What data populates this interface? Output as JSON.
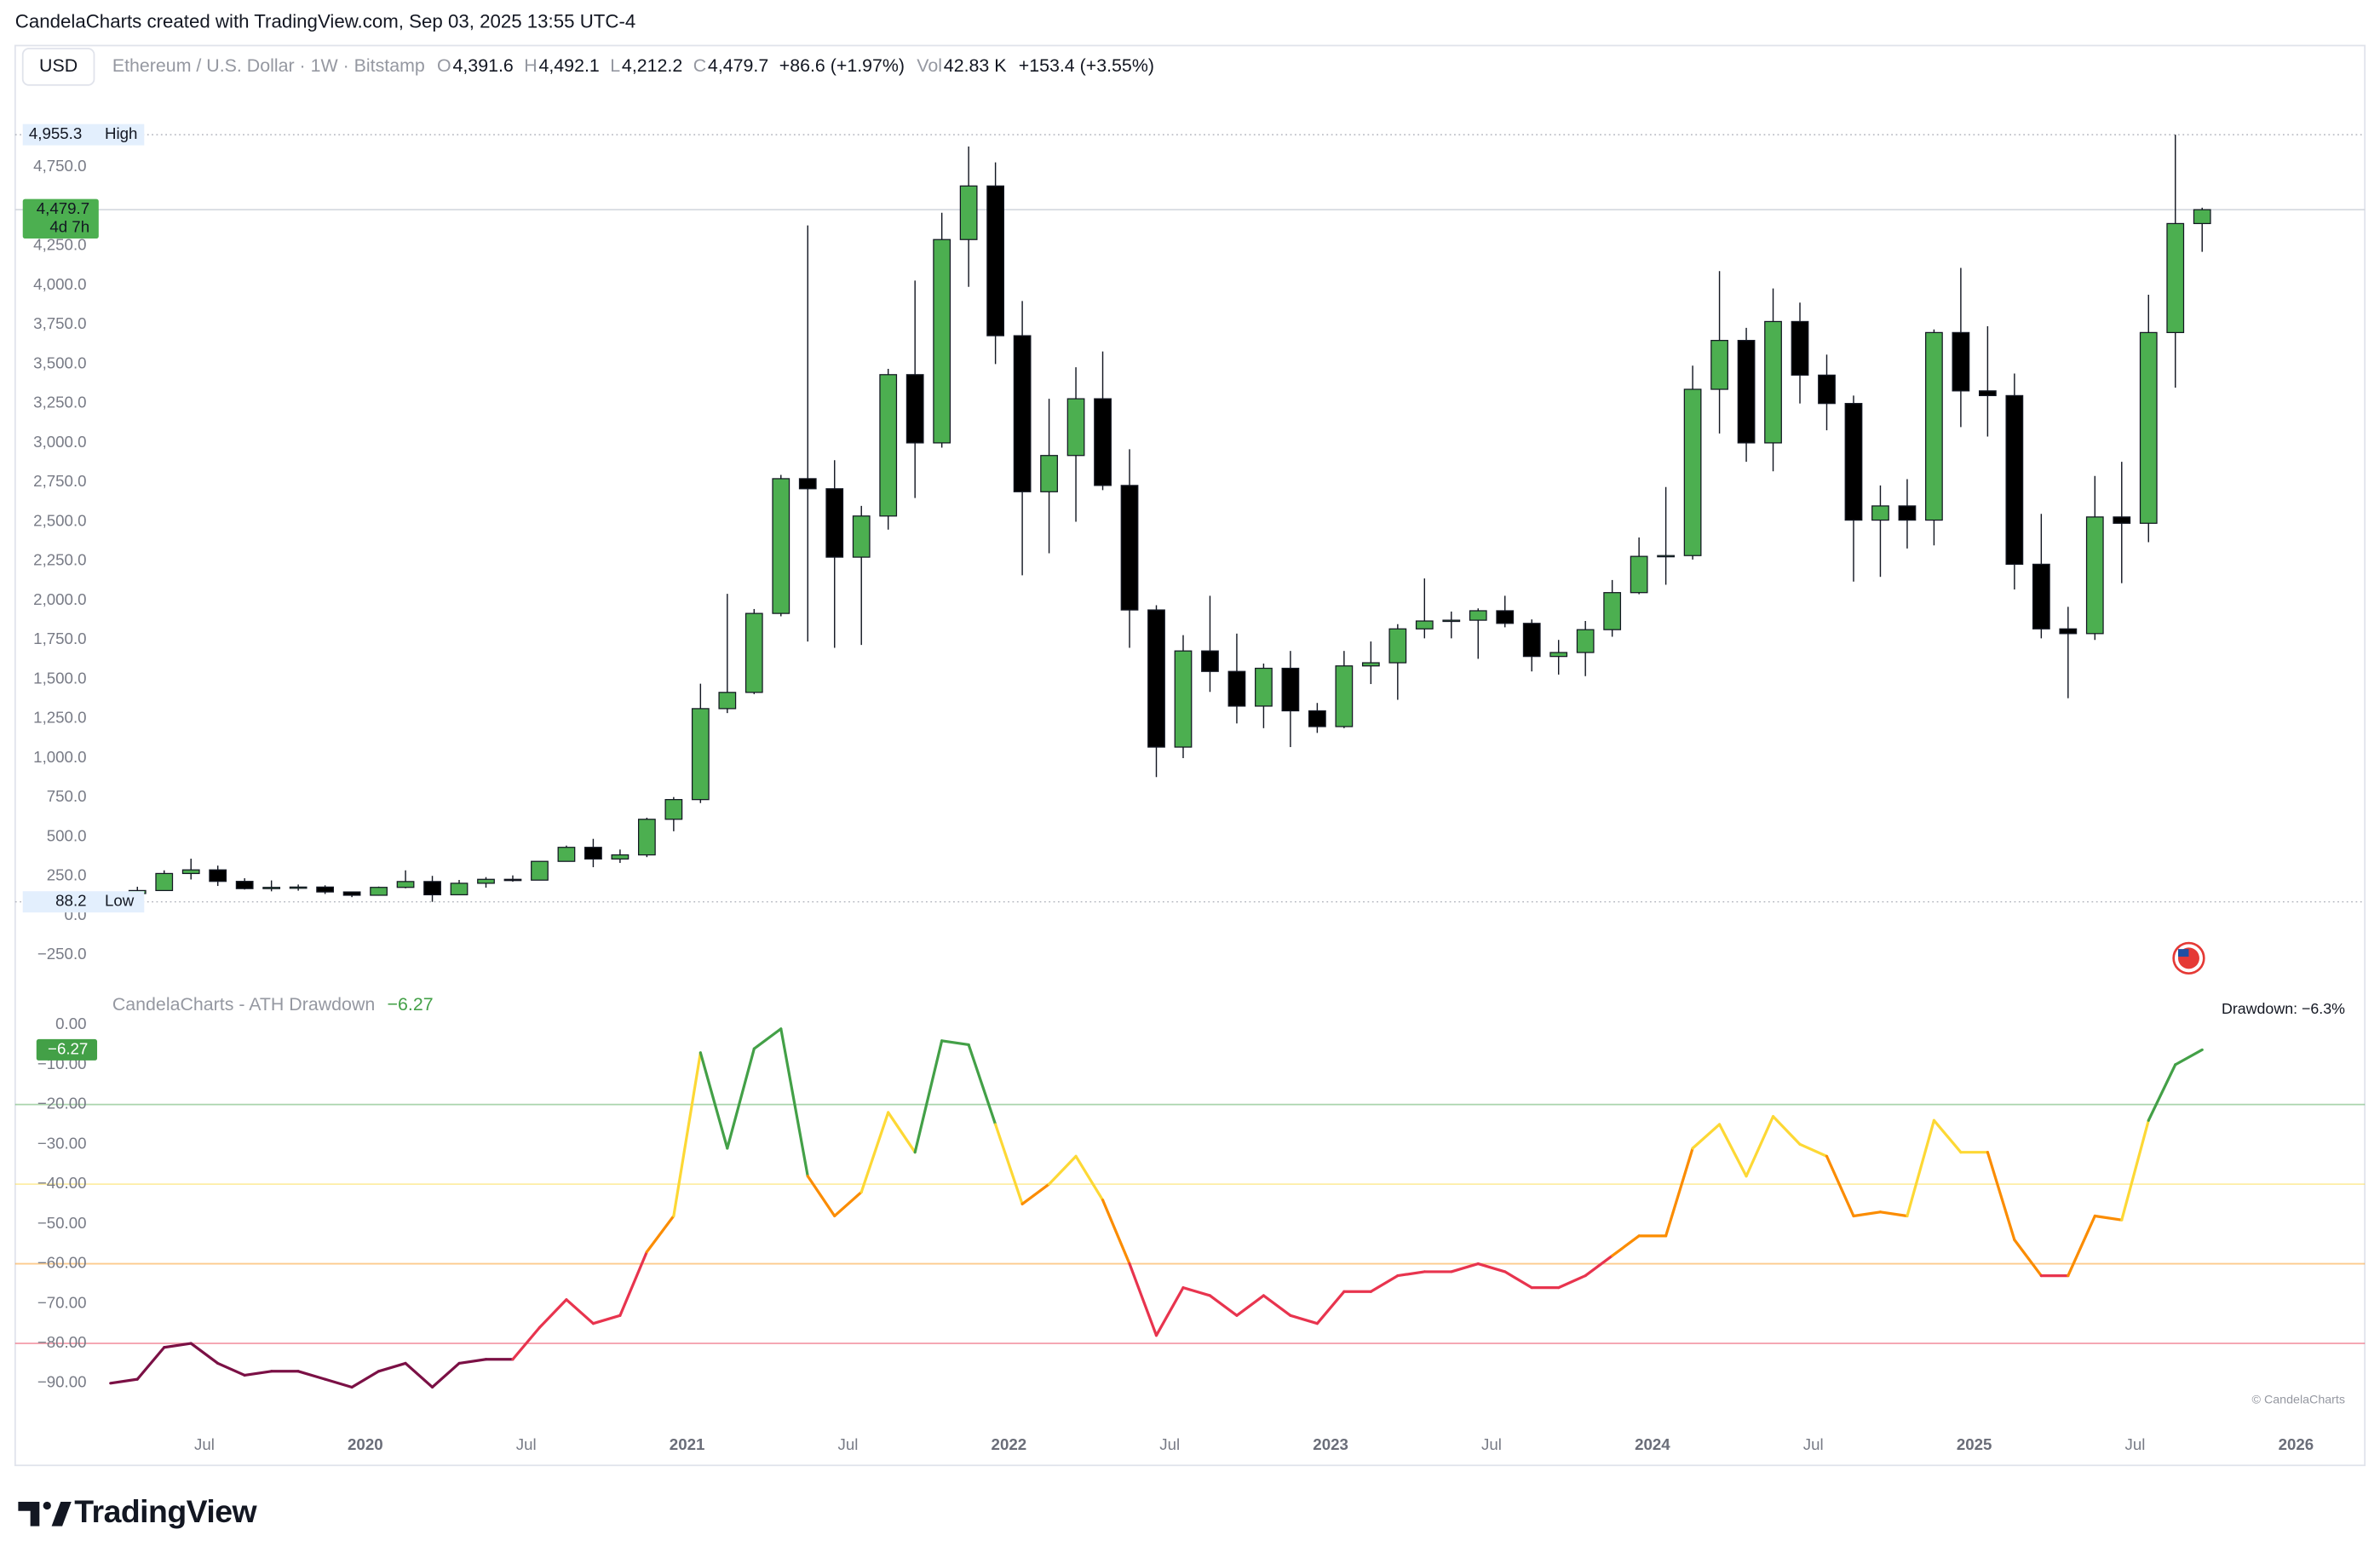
{
  "header": {
    "credit_line": "CandelaCharts created with TradingView.com, Sep 03, 2025 13:55 UTC-4",
    "currency": "USD",
    "symbol": "Ethereum / U.S. Dollar · 1W · Bitstamp",
    "ohlc": [
      {
        "key": "O",
        "value": "4,391.6"
      },
      {
        "key": "H",
        "value": "4,492.1"
      },
      {
        "key": "L",
        "value": "4,212.2"
      },
      {
        "key": "C",
        "value": "4,479.7"
      }
    ],
    "change": "+86.6 (+1.97%)",
    "volume_key": "Vol",
    "volume": "42.83 K",
    "volume_change": "+153.4 (+3.55%)"
  },
  "footer": {
    "brand": "TradingView"
  },
  "chart_data": [
    {
      "type": "candlestick",
      "x": [
        "2019-03",
        "2019-04",
        "2019-05",
        "2019-06",
        "2019-07",
        "2019-08",
        "2019-09",
        "2019-10",
        "2019-11",
        "2019-12",
        "2020-01",
        "2020-02",
        "2020-03",
        "2020-04",
        "2020-05",
        "2020-06",
        "2020-07",
        "2020-08",
        "2020-09",
        "2020-10",
        "2020-11",
        "2020-12",
        "2021-01",
        "2021-02",
        "2021-03",
        "2021-04",
        "2021-05",
        "2021-06",
        "2021-07",
        "2021-08",
        "2021-09",
        "2021-10",
        "2021-11",
        "2021-12",
        "2022-01",
        "2022-02",
        "2022-03",
        "2022-04",
        "2022-05",
        "2022-06",
        "2022-07",
        "2022-08",
        "2022-09",
        "2022-10",
        "2022-11",
        "2022-12",
        "2023-01",
        "2023-02",
        "2023-03",
        "2023-04",
        "2023-05",
        "2023-06",
        "2023-07",
        "2023-08",
        "2023-09",
        "2023-10",
        "2023-11",
        "2023-12",
        "2024-01",
        "2024-02",
        "2024-03",
        "2024-04",
        "2024-05",
        "2024-06",
        "2024-07",
        "2024-08",
        "2024-09",
        "2024-10",
        "2024-11",
        "2024-12",
        "2025-01",
        "2025-02",
        "2025-03",
        "2025-04",
        "2025-05",
        "2025-06",
        "2025-07",
        "2025-08",
        "2025-09"
      ],
      "open": [
        136,
        141,
        160,
        268,
        291,
        218,
        172,
        180,
        182,
        151,
        130,
        180,
        217,
        133,
        206,
        231,
        226,
        345,
        434,
        360,
        386,
        612,
        737,
        1314,
        1417,
        1918,
        2773,
        2709,
        2275,
        2536,
        3433,
        3000,
        4290,
        4630,
        3680,
        2690,
        2920,
        3280,
        2730,
        1940,
        1070,
        1680,
        1550,
        1330,
        1570,
        1300,
        1200,
        1585,
        1605,
        1820,
        1870,
        1875,
        1935,
        1855,
        1645,
        1670,
        1815,
        2050,
        2280,
        2285,
        3340,
        3650,
        3000,
        3770,
        3430,
        3250,
        2510,
        2600,
        2510,
        3700,
        3330,
        3300,
        2230,
        1820,
        1790,
        2530,
        2490,
        3700,
        4391.6
      ],
      "high": [
        146,
        184,
        288,
        362,
        318,
        238,
        224,
        198,
        193,
        153,
        185,
        288,
        253,
        227,
        245,
        256,
        346,
        445,
        488,
        420,
        622,
        753,
        1472,
        2042,
        1946,
        2797,
        4380,
        2890,
        2600,
        3470,
        4030,
        4460,
        4880,
        4780,
        3900,
        3280,
        3480,
        3580,
        2960,
        1970,
        1780,
        2030,
        1790,
        1600,
        1680,
        1350,
        1680,
        1740,
        1850,
        2140,
        1930,
        1950,
        2030,
        1880,
        1750,
        1870,
        2130,
        2400,
        2720,
        3490,
        4090,
        3730,
        3980,
        3890,
        3560,
        3300,
        2730,
        2770,
        3720,
        4110,
        3740,
        3440,
        2550,
        1960,
        2790,
        2880,
        3940,
        4955.3,
        4492.1
      ],
      "low": [
        127,
        139,
        158,
        230,
        189,
        166,
        155,
        159,
        138,
        118,
        127,
        174,
        88.2,
        130,
        178,
        216,
        225,
        345,
        308,
        335,
        372,
        536,
        715,
        1286,
        1406,
        1900,
        1740,
        1700,
        1718,
        2450,
        2650,
        2970,
        3990,
        3500,
        2160,
        2300,
        2500,
        2700,
        1700,
        880,
        1000,
        1420,
        1220,
        1190,
        1070,
        1160,
        1190,
        1470,
        1370,
        1760,
        1760,
        1630,
        1830,
        1550,
        1530,
        1520,
        1770,
        2040,
        2100,
        2260,
        3060,
        2880,
        2820,
        3250,
        3080,
        2120,
        2150,
        2330,
        2350,
        3100,
        3040,
        2070,
        1760,
        1380,
        1750,
        2110,
        2370,
        3350,
        4212.2
      ],
      "close": [
        141,
        160,
        268,
        291,
        218,
        172,
        180,
        182,
        151,
        130,
        180,
        217,
        133,
        206,
        231,
        226,
        345,
        434,
        360,
        386,
        612,
        737,
        1314,
        1417,
        1918,
        2773,
        2709,
        2275,
        2536,
        3433,
        3000,
        4290,
        4630,
        3680,
        2690,
        2920,
        3280,
        2730,
        1940,
        1070,
        1680,
        1550,
        1330,
        1570,
        1300,
        1200,
        1585,
        1605,
        1820,
        1870,
        1875,
        1935,
        1855,
        1645,
        1670,
        1815,
        2050,
        2280,
        2285,
        3340,
        3650,
        3000,
        3770,
        3430,
        3250,
        2510,
        2600,
        2510,
        3700,
        3330,
        3300,
        2230,
        1820,
        1790,
        2530,
        2490,
        3700,
        4391.6,
        4479.7
      ],
      "up_color": "#4caf50",
      "down_color": "#000000",
      "xlim": [
        "2018-12",
        "2026-03"
      ],
      "ylim": [
        -356,
        5280
      ],
      "yticks": [
        {
          "value": -250,
          "label": "−250.0"
        },
        {
          "value": 0,
          "label": "0.0"
        },
        {
          "value": 250,
          "label": "250.0"
        },
        {
          "value": 500,
          "label": "500.0"
        },
        {
          "value": 750,
          "label": "750.0"
        },
        {
          "value": 1000,
          "label": "1,000.0"
        },
        {
          "value": 1250,
          "label": "1,250.0"
        },
        {
          "value": 1500,
          "label": "1,500.0"
        },
        {
          "value": 1750,
          "label": "1,750.0"
        },
        {
          "value": 2000,
          "label": "2,000.0"
        },
        {
          "value": 2250,
          "label": "2,250.0"
        },
        {
          "value": 2500,
          "label": "2,500.0"
        },
        {
          "value": 2750,
          "label": "2,750.0"
        },
        {
          "value": 3000,
          "label": "3,000.0"
        },
        {
          "value": 3250,
          "label": "3,250.0"
        },
        {
          "value": 3500,
          "label": "3,500.0"
        },
        {
          "value": 3750,
          "label": "3,750.0"
        },
        {
          "value": 4000,
          "label": "4,000.0"
        },
        {
          "value": 4250,
          "label": "4,250.0"
        },
        {
          "value": 4750,
          "label": "4,750.0"
        }
      ],
      "high_marker": {
        "value": 4955.3,
        "label": "4,955.3",
        "text": "High"
      },
      "low_marker": {
        "value": 88.2,
        "label": "88.2",
        "text": "Low"
      },
      "last_price": {
        "value": 4479.7,
        "label": "4,479.7",
        "countdown": "4d 7h"
      }
    },
    {
      "type": "line",
      "title": "CandelaCharts - ATH Drawdown",
      "last_label": "−6.27",
      "x": [
        "2019-03",
        "2019-04",
        "2019-05",
        "2019-06",
        "2019-07",
        "2019-08",
        "2019-09",
        "2019-10",
        "2019-11",
        "2019-12",
        "2020-01",
        "2020-02",
        "2020-03",
        "2020-04",
        "2020-05",
        "2020-06",
        "2020-07",
        "2020-08",
        "2020-09",
        "2020-10",
        "2020-11",
        "2020-12",
        "2021-01",
        "2021-02",
        "2021-03",
        "2021-04",
        "2021-05",
        "2021-06",
        "2021-07",
        "2021-08",
        "2021-09",
        "2021-10",
        "2021-11",
        "2021-12",
        "2022-01",
        "2022-02",
        "2022-03",
        "2022-04",
        "2022-05",
        "2022-06",
        "2022-07",
        "2022-08",
        "2022-09",
        "2022-10",
        "2022-11",
        "2022-12",
        "2023-01",
        "2023-02",
        "2023-03",
        "2023-04",
        "2023-05",
        "2023-06",
        "2023-07",
        "2023-08",
        "2023-09",
        "2023-10",
        "2023-11",
        "2023-12",
        "2024-01",
        "2024-02",
        "2024-03",
        "2024-04",
        "2024-05",
        "2024-06",
        "2024-07",
        "2024-08",
        "2024-09",
        "2024-10",
        "2024-11",
        "2024-12",
        "2025-01",
        "2025-02",
        "2025-03",
        "2025-04",
        "2025-05",
        "2025-06",
        "2025-07",
        "2025-08",
        "2025-09"
      ],
      "values": [
        -90,
        -89,
        -81,
        -80,
        -85,
        -88,
        -87,
        -87,
        -89,
        -91,
        -87,
        -85,
        -91,
        -85,
        -84,
        -84,
        -76,
        -69,
        -75,
        -73,
        -57,
        -48,
        -7,
        -31,
        -6,
        -1,
        -38,
        -48,
        -42,
        -22,
        -32,
        -4,
        -5,
        -25,
        -45,
        -40,
        -33,
        -44,
        -60,
        -78,
        -66,
        -68,
        -73,
        -68,
        -73,
        -75,
        -67,
        -67,
        -63,
        -62,
        -62,
        -60,
        -62,
        -66,
        -66,
        -63,
        -58,
        -53,
        -53,
        -31,
        -25,
        -38,
        -23,
        -30,
        -33,
        -48,
        -47,
        -48,
        -24,
        -32,
        -32,
        -54,
        -63,
        -63,
        -48,
        -49,
        -24,
        -10,
        -6.27
      ],
      "levels": [
        {
          "value": -20,
          "color": "#43a047"
        },
        {
          "value": -40,
          "color": "#fdd835"
        },
        {
          "value": -60,
          "color": "#fb8c00"
        },
        {
          "value": -80,
          "color": "#e8344e"
        }
      ],
      "below_color": "#7b1045",
      "annotation": "Drawdown: −6.3%",
      "credit": "© CandelaCharts",
      "xlim": [
        "2018-12",
        "2026-03"
      ],
      "ylim": [
        -101.1,
        11.4
      ],
      "yticks": [
        {
          "value": 0,
          "label": "0.00"
        },
        {
          "value": -10,
          "label": "−10.00"
        },
        {
          "value": -20,
          "label": "−20.00"
        },
        {
          "value": -30,
          "label": "−30.00"
        },
        {
          "value": -40,
          "label": "−40.00"
        },
        {
          "value": -50,
          "label": "−50.00"
        },
        {
          "value": -60,
          "label": "−60.00"
        },
        {
          "value": -70,
          "label": "−70.00"
        },
        {
          "value": -80,
          "label": "−80.00"
        },
        {
          "value": -90,
          "label": "−90.00"
        }
      ],
      "xticks": [
        {
          "value": "2019-07",
          "label": "Jul"
        },
        {
          "value": "2020-01",
          "label": "2020"
        },
        {
          "value": "2020-07",
          "label": "Jul"
        },
        {
          "value": "2021-01",
          "label": "2021"
        },
        {
          "value": "2021-07",
          "label": "Jul"
        },
        {
          "value": "2022-01",
          "label": "2022"
        },
        {
          "value": "2022-07",
          "label": "Jul"
        },
        {
          "value": "2023-01",
          "label": "2023"
        },
        {
          "value": "2023-07",
          "label": "Jul"
        },
        {
          "value": "2024-01",
          "label": "2024"
        },
        {
          "value": "2024-07",
          "label": "Jul"
        },
        {
          "value": "2025-01",
          "label": "2025"
        },
        {
          "value": "2025-07",
          "label": "Jul"
        },
        {
          "value": "2026-01",
          "label": "2026"
        }
      ]
    }
  ]
}
